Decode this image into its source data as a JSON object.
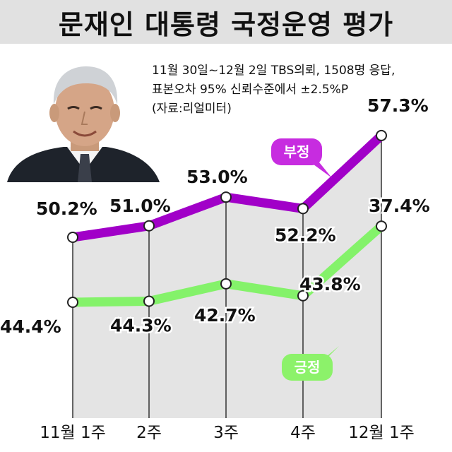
{
  "title": "문재인 대통령 국정운영 평가",
  "note": {
    "line1": "11월 30일~12월 2일 TBS의뢰, 1508명 응답,",
    "line2": "표본오차 95% 신뢰수준에서 ±2.5%P",
    "line3": "(자료:리얼미터)"
  },
  "colors": {
    "negative": "#a100c8",
    "positive": "#84f26a",
    "negative_bubble": "#c72ce0",
    "positive_bubble": "#8cf26a",
    "fill": "#e4e4e4",
    "header": "#e1e1e1"
  },
  "chart_data": {
    "type": "line",
    "title": "문재인 대통령 국정운영 평가",
    "categories": [
      "11월 1주",
      "2주",
      "3주",
      "4주",
      "12월 1주"
    ],
    "series": [
      {
        "name": "부정",
        "values": [
          50.2,
          51.0,
          53.0,
          52.2,
          57.3
        ],
        "labels": [
          "50.2%",
          "51.0%",
          "53.0%",
          "52.2%",
          "57.3%"
        ],
        "color": "#a100c8"
      },
      {
        "name": "긍정",
        "values": [
          44.4,
          44.3,
          42.7,
          43.8,
          37.4
        ],
        "labels": [
          "44.4%",
          "44.3%",
          "42.7%",
          "43.8%",
          "37.4%"
        ],
        "color": "#84f26a"
      }
    ],
    "xlabel": "",
    "ylabel": "",
    "grid": false,
    "legend": "callouts"
  },
  "portrait": {
    "icon": "president-portrait"
  }
}
